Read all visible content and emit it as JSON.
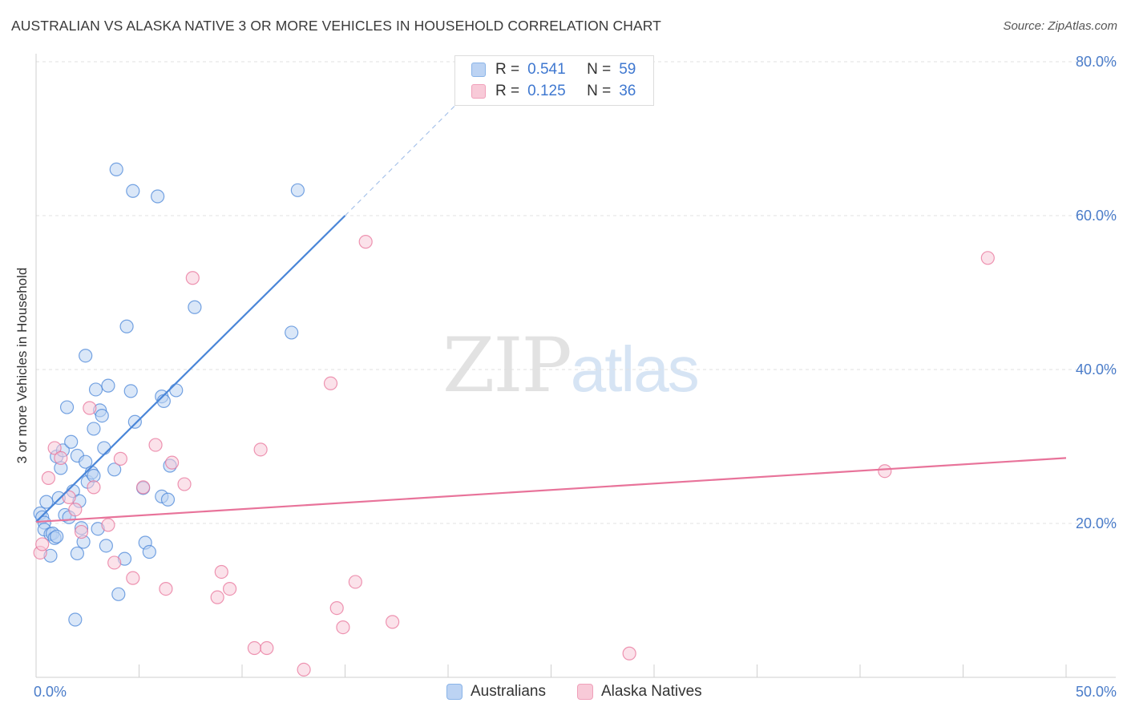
{
  "header": {
    "title": "AUSTRALIAN VS ALASKA NATIVE 3 OR MORE VEHICLES IN HOUSEHOLD CORRELATION CHART",
    "source": "Source: ZipAtlas.com"
  },
  "watermark": {
    "zip": "ZIP",
    "atlas": "atlas"
  },
  "legend": {
    "rows": [
      {
        "r_label": "R =",
        "r_value": "0.541",
        "n_label": "N =",
        "n_value": "59",
        "color": "#8ab4e8",
        "fill": "#bcd3f3"
      },
      {
        "r_label": "R =",
        "r_value": "0.125",
        "n_label": "N =",
        "n_value": "36",
        "color": "#f0a0ba",
        "fill": "#f8cad8"
      }
    ]
  },
  "bottom_legend": {
    "items": [
      {
        "label": "Australians",
        "color": "#8ab4e8",
        "fill": "#bcd3f3"
      },
      {
        "label": "Alaska Natives",
        "color": "#f0a0ba",
        "fill": "#f8cad8"
      }
    ]
  },
  "chart_data": {
    "type": "scatter",
    "title": "AUSTRALIAN VS ALASKA NATIVE 3 OR MORE VEHICLES IN HOUSEHOLD CORRELATION CHART",
    "xlabel": "",
    "ylabel": "3 or more Vehicles in Household",
    "xlim": [
      0,
      50
    ],
    "ylim": [
      0,
      80
    ],
    "x_tick_labels": [
      "0.0%",
      "50.0%"
    ],
    "y_ticks": [
      20,
      40,
      60,
      80
    ],
    "y_tick_labels": [
      "20.0%",
      "40.0%",
      "60.0%",
      "80.0%"
    ],
    "grid": true,
    "series": [
      {
        "name": "Australians",
        "color": "#4a86d8",
        "fill": "#bcd3f3",
        "points": [
          [
            0.2,
            21.3
          ],
          [
            0.3,
            20.8
          ],
          [
            0.4,
            20.1
          ],
          [
            0.4,
            19.2
          ],
          [
            0.5,
            22.8
          ],
          [
            0.7,
            18.6
          ],
          [
            0.8,
            18.7
          ],
          [
            0.7,
            15.8
          ],
          [
            0.9,
            18.1
          ],
          [
            1.0,
            18.3
          ],
          [
            1.0,
            28.7
          ],
          [
            1.1,
            23.3
          ],
          [
            1.2,
            27.2
          ],
          [
            1.3,
            29.5
          ],
          [
            1.4,
            21.1
          ],
          [
            1.5,
            35.1
          ],
          [
            1.6,
            20.8
          ],
          [
            1.7,
            30.6
          ],
          [
            1.8,
            24.2
          ],
          [
            1.9,
            7.5
          ],
          [
            2.0,
            28.8
          ],
          [
            2.0,
            16.1
          ],
          [
            2.1,
            22.9
          ],
          [
            2.2,
            19.4
          ],
          [
            2.3,
            17.6
          ],
          [
            2.4,
            41.8
          ],
          [
            2.4,
            28.0
          ],
          [
            2.5,
            25.4
          ],
          [
            2.7,
            26.6
          ],
          [
            2.8,
            26.2
          ],
          [
            2.8,
            32.3
          ],
          [
            2.9,
            37.4
          ],
          [
            3.0,
            19.3
          ],
          [
            3.1,
            34.7
          ],
          [
            3.2,
            34.0
          ],
          [
            3.3,
            29.8
          ],
          [
            3.4,
            17.1
          ],
          [
            3.5,
            37.9
          ],
          [
            3.8,
            27.0
          ],
          [
            3.9,
            66.0
          ],
          [
            4.0,
            10.8
          ],
          [
            4.3,
            15.4
          ],
          [
            4.4,
            45.6
          ],
          [
            4.6,
            37.2
          ],
          [
            4.7,
            63.2
          ],
          [
            4.8,
            33.2
          ],
          [
            5.2,
            24.6
          ],
          [
            5.3,
            17.5
          ],
          [
            5.5,
            16.3
          ],
          [
            5.9,
            62.5
          ],
          [
            6.1,
            36.5
          ],
          [
            6.1,
            23.5
          ],
          [
            6.2,
            35.9
          ],
          [
            6.4,
            23.1
          ],
          [
            6.5,
            27.5
          ],
          [
            6.8,
            37.3
          ],
          [
            7.7,
            48.1
          ],
          [
            12.4,
            44.8
          ],
          [
            12.7,
            63.3
          ]
        ],
        "trend": {
          "x": [
            0,
            15
          ],
          "y": [
            20.2,
            60.0
          ],
          "dashed_to": {
            "x": 20.6,
            "y": 75.0
          }
        }
      },
      {
        "name": "Alaska Natives",
        "color": "#e8739a",
        "fill": "#f8cad8",
        "points": [
          [
            0.2,
            16.2
          ],
          [
            0.3,
            17.3
          ],
          [
            0.6,
            25.9
          ],
          [
            0.9,
            29.8
          ],
          [
            1.2,
            28.5
          ],
          [
            1.6,
            23.4
          ],
          [
            1.9,
            21.8
          ],
          [
            2.2,
            18.9
          ],
          [
            2.6,
            35.0
          ],
          [
            2.8,
            24.7
          ],
          [
            3.5,
            19.8
          ],
          [
            3.8,
            14.9
          ],
          [
            4.1,
            28.4
          ],
          [
            4.7,
            12.9
          ],
          [
            5.2,
            24.7
          ],
          [
            5.8,
            30.2
          ],
          [
            6.3,
            11.5
          ],
          [
            6.6,
            27.9
          ],
          [
            7.2,
            25.1
          ],
          [
            7.6,
            51.9
          ],
          [
            8.8,
            10.4
          ],
          [
            9.0,
            13.7
          ],
          [
            9.4,
            11.5
          ],
          [
            10.6,
            3.8
          ],
          [
            10.9,
            29.6
          ],
          [
            11.2,
            3.8
          ],
          [
            13.0,
            1.0
          ],
          [
            14.3,
            38.2
          ],
          [
            14.6,
            9.0
          ],
          [
            14.9,
            6.5
          ],
          [
            15.5,
            12.4
          ],
          [
            16.0,
            56.6
          ],
          [
            17.3,
            7.2
          ],
          [
            28.8,
            3.1
          ],
          [
            41.2,
            26.8
          ],
          [
            46.2,
            54.5
          ]
        ],
        "trend": {
          "x": [
            0,
            50
          ],
          "y": [
            20.2,
            28.5
          ]
        }
      }
    ]
  }
}
